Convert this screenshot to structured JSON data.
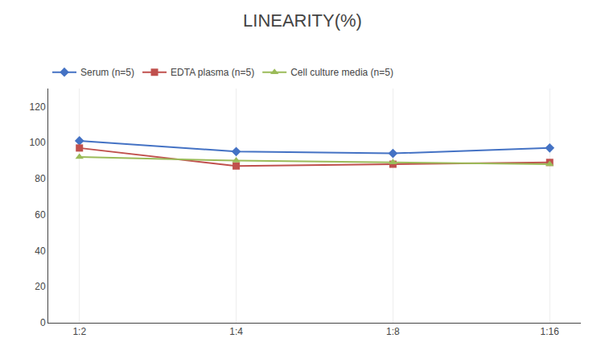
{
  "chart_data": {
    "type": "line",
    "title": "LINEARITY(%)",
    "categories": [
      "1:2",
      "1:4",
      "1:8",
      "1:16"
    ],
    "series": [
      {
        "name": "Serum (n=5)",
        "color": "#4472C4",
        "marker": "diamond",
        "values": [
          101,
          95,
          94,
          97
        ]
      },
      {
        "name": "EDTA plasma (n=5)",
        "color": "#C0504D",
        "marker": "square",
        "values": [
          97,
          87,
          88,
          89
        ]
      },
      {
        "name": "Cell culture media (n=5)",
        "color": "#9BBB59",
        "marker": "triangle-up",
        "values": [
          92,
          90,
          89,
          88
        ]
      }
    ],
    "ylim": [
      0,
      130
    ],
    "yticks": [
      0,
      20,
      40,
      60,
      80,
      100,
      120
    ],
    "grid": "x",
    "legend": "top"
  }
}
